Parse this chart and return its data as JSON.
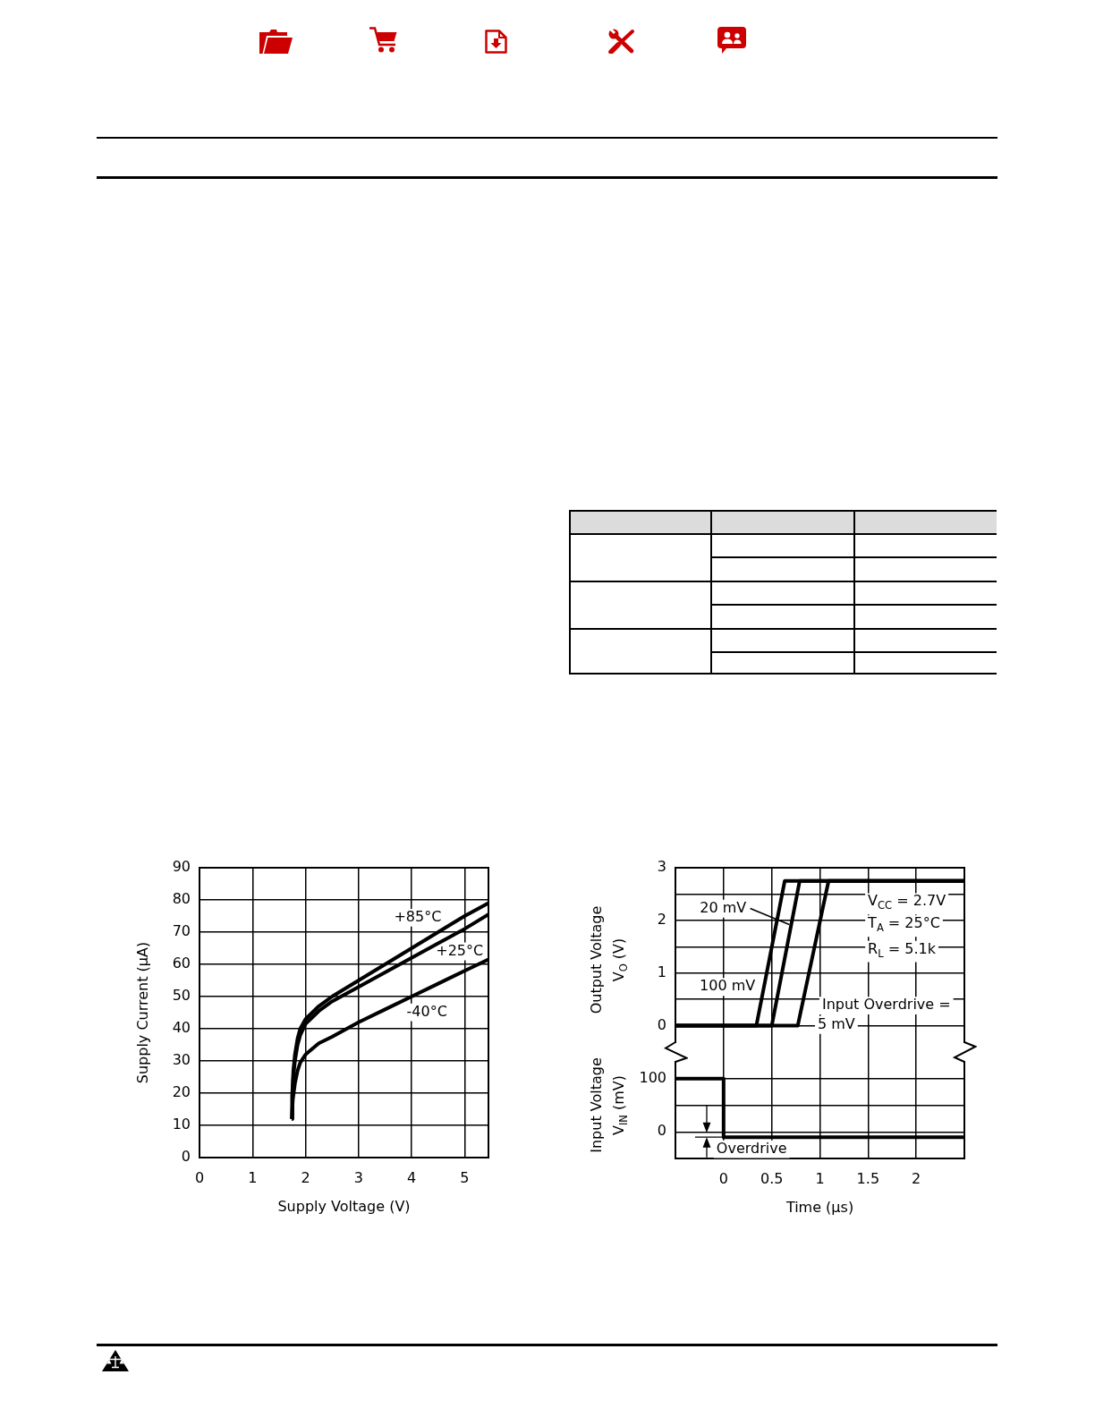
{
  "chart_data": [
    {
      "type": "line",
      "xlabel": "Supply Voltage (V)",
      "ylabel": "Supply Current (μA)",
      "xlim": [
        0,
        5.45
      ],
      "xticks": [
        0,
        1,
        2,
        3,
        4,
        5
      ],
      "ylim": [
        0,
        90
      ],
      "yticks": [
        0,
        10,
        20,
        30,
        40,
        50,
        60,
        70,
        80,
        90
      ],
      "grid": true,
      "marker": "none",
      "series": [
        {
          "name": "+85°C",
          "color": "#000000",
          "x": [
            1.74,
            1.75,
            1.77,
            1.8,
            1.85,
            1.9,
            2,
            2.25,
            2.5,
            3,
            3.5,
            4,
            4.5,
            5,
            5.45
          ],
          "values": [
            12,
            20,
            27,
            32,
            37,
            40,
            43,
            47,
            50,
            55,
            60,
            65,
            70,
            75,
            79
          ]
        },
        {
          "name": "+25°C",
          "color": "#000000",
          "x": [
            1.74,
            1.75,
            1.77,
            1.8,
            1.85,
            1.9,
            2,
            2.25,
            2.5,
            3,
            3.5,
            4,
            4.5,
            5,
            5.45
          ],
          "values": [
            12,
            19,
            25,
            30,
            35,
            38,
            41.5,
            45.5,
            48.5,
            53,
            57.5,
            62,
            66.5,
            71,
            75.5
          ]
        },
        {
          "name": "-40°C",
          "color": "#000000",
          "x": [
            1.74,
            1.76,
            1.8,
            1.85,
            1.9,
            2,
            2.25,
            2.5,
            3,
            3.5,
            4,
            4.5,
            5,
            5.45
          ],
          "values": [
            12,
            18,
            23,
            27,
            29.5,
            32,
            35.5,
            37.5,
            42,
            46,
            50,
            54,
            58,
            61.5
          ]
        }
      ]
    },
    {
      "type": "line",
      "ylabel": "Output Voltage\nV$_{O}$ (V)",
      "xlim": [
        -0.5,
        2.5
      ],
      "xticks": [
        0,
        0.5,
        1,
        1.5,
        2
      ],
      "ylim": [
        -0.5,
        3
      ],
      "yticks": [
        0,
        {
          "value": 0.5,
          "label": null
        },
        1,
        {
          "value": 1.5,
          "label": null
        },
        2,
        {
          "value": 2.5,
          "label": null
        },
        3
      ],
      "tick_labels": "y",
      "grid": true,
      "marker": "none",
      "annotations": [
        "V$_{CC}$ = 2.7V",
        "T$_{A}$ = 25°C",
        "R$_{L}$ = 5.1k",
        "Input Overdrive ="
      ],
      "series": [
        {
          "name": "100 mV",
          "color": "#000000",
          "x": [
            -0.5,
            0.34,
            0.635,
            2.5
          ],
          "values": [
            0,
            0,
            2.75,
            2.75
          ]
        },
        {
          "name": "20 mV",
          "color": "#000000",
          "x": [
            -0.5,
            0.5,
            0.79,
            2.5
          ],
          "values": [
            0,
            0,
            2.75,
            2.75
          ]
        },
        {
          "name": "5 mV",
          "color": "#000000",
          "x": [
            -0.5,
            0.77,
            1.09,
            2.5
          ],
          "values": [
            0,
            0,
            2.75,
            2.75
          ]
        }
      ]
    },
    {
      "type": "line",
      "xlabel": "Time (μs)",
      "ylabel": "Input Voltage\nV$_{IN}$ (mV)",
      "xlim": [
        -0.5,
        2.5
      ],
      "xticks": [
        0,
        0.5,
        1,
        1.5,
        2
      ],
      "ylim": [
        -50,
        150
      ],
      "yticks": [
        0,
        {
          "value": 50,
          "label": null
        },
        100
      ],
      "grid": true,
      "marker": "none",
      "annotations": [
        "Overdrive"
      ],
      "series": [
        {
          "color": "#000000",
          "x": [
            -0.5,
            0,
            0,
            2.5
          ],
          "values": [
            100,
            100,
            -10,
            -10
          ]
        }
      ]
    }
  ]
}
